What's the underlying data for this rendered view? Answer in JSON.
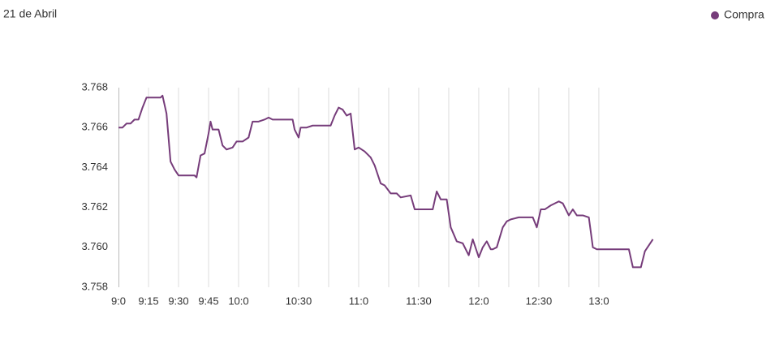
{
  "chart_data": {
    "type": "line",
    "title": "21 de Abril",
    "x": [
      540,
      542,
      544,
      546,
      548,
      550,
      552,
      554,
      558,
      561,
      562,
      564,
      566,
      568,
      570,
      578,
      579,
      581,
      583,
      585,
      586,
      587,
      590,
      592,
      594,
      597,
      599,
      602,
      605,
      607,
      610,
      613,
      615,
      617,
      619,
      623,
      627,
      628,
      630,
      631,
      634,
      637,
      643,
      646,
      648,
      650,
      652,
      654,
      656,
      658,
      660,
      663,
      666,
      668,
      671,
      673,
      676,
      679,
      681,
      686,
      688,
      694,
      697,
      699,
      701,
      704,
      706,
      709,
      712,
      715,
      717,
      720,
      722,
      724,
      726,
      727,
      729,
      732,
      734,
      736,
      740,
      746,
      747,
      749,
      751,
      753,
      756,
      760,
      762,
      765,
      767,
      769,
      772,
      775,
      777,
      779,
      783,
      793,
      795,
      797,
      801,
      803,
      807
    ],
    "series": [
      {
        "name": "Compra",
        "color": "#763c7a",
        "values": [
          3.766,
          3.766,
          3.7662,
          3.7662,
          3.7664,
          3.7664,
          3.767,
          3.7675,
          3.7675,
          3.7675,
          3.7676,
          3.7667,
          3.7643,
          3.7639,
          3.7636,
          3.7636,
          3.7635,
          3.7646,
          3.7647,
          3.7657,
          3.7663,
          3.7659,
          3.7659,
          3.7651,
          3.7649,
          3.765,
          3.7653,
          3.7653,
          3.7655,
          3.7663,
          3.7663,
          3.7664,
          3.7665,
          3.7664,
          3.7664,
          3.7664,
          3.7664,
          3.7659,
          3.7655,
          3.766,
          3.766,
          3.7661,
          3.7661,
          3.7661,
          3.7666,
          3.767,
          3.7669,
          3.7666,
          3.7667,
          3.7649,
          3.765,
          3.7648,
          3.7645,
          3.7641,
          3.7632,
          3.7631,
          3.7627,
          3.7627,
          3.7625,
          3.7626,
          3.7619,
          3.7619,
          3.7619,
          3.7628,
          3.7624,
          3.7624,
          3.761,
          3.7603,
          3.7602,
          3.7596,
          3.7604,
          3.7595,
          3.76,
          3.7603,
          3.7599,
          3.7599,
          3.76,
          3.761,
          3.7613,
          3.7614,
          3.7615,
          3.7615,
          3.7615,
          3.761,
          3.7619,
          3.7619,
          3.7621,
          3.7623,
          3.7622,
          3.7616,
          3.7619,
          3.7616,
          3.7616,
          3.7615,
          3.76,
          3.7599,
          3.7599,
          3.7599,
          3.7599,
          3.759,
          3.759,
          3.7598,
          3.7604
        ]
      }
    ],
    "xlim": [
      540,
      808
    ],
    "xticks": [
      {
        "value": 540,
        "label": "9:0"
      },
      {
        "value": 555,
        "label": "9:15"
      },
      {
        "value": 570,
        "label": "9:30"
      },
      {
        "value": 585,
        "label": "9:45"
      },
      {
        "value": 600,
        "label": "10:0"
      },
      {
        "value": 630,
        "label": "10:30"
      },
      {
        "value": 660,
        "label": "11:0"
      },
      {
        "value": 690,
        "label": "11:30"
      },
      {
        "value": 720,
        "label": "12:0"
      },
      {
        "value": 750,
        "label": "12:30"
      },
      {
        "value": 780,
        "label": "13:0"
      }
    ],
    "xminor": [
      615,
      645,
      675,
      705,
      735,
      765
    ],
    "ylim": [
      3.758,
      3.768
    ],
    "yticks": [
      3.758,
      {
        "value": 3.76,
        "label": "3.760"
      },
      3.762,
      3.764,
      3.766,
      3.768
    ],
    "grid": true,
    "legend": "top-right"
  }
}
